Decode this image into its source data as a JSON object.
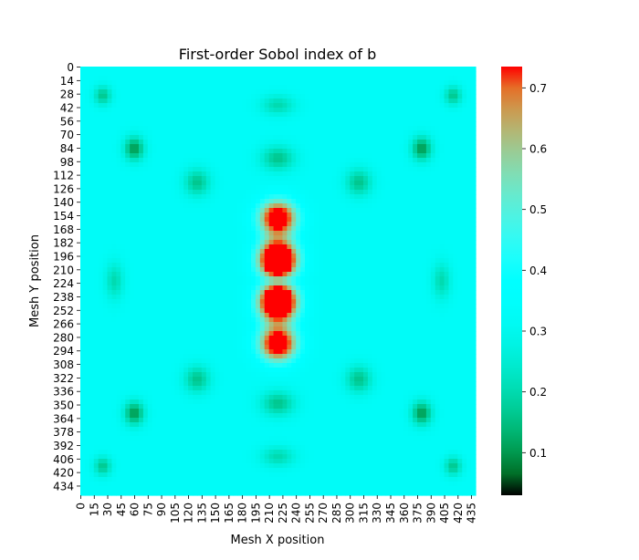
{
  "chart_data": {
    "type": "heatmap",
    "title": "First-order Sobol index of b",
    "xlabel": "Mesh X position",
    "ylabel": "Mesh Y position",
    "x_ticks": [
      0,
      15,
      30,
      45,
      60,
      75,
      90,
      105,
      120,
      135,
      150,
      165,
      180,
      195,
      210,
      225,
      240,
      255,
      270,
      285,
      300,
      315,
      330,
      345,
      360,
      375,
      390,
      405,
      420,
      435
    ],
    "y_ticks": [
      0,
      14,
      28,
      42,
      56,
      70,
      84,
      98,
      112,
      126,
      140,
      154,
      168,
      182,
      196,
      210,
      224,
      238,
      252,
      266,
      280,
      294,
      308,
      322,
      336,
      350,
      364,
      378,
      392,
      406,
      420,
      434
    ],
    "x_range": [
      0,
      440
    ],
    "y_range": [
      0,
      444
    ],
    "colormap": "rainbow",
    "colorbar": {
      "range": [
        0.03,
        0.735
      ],
      "ticks": [
        "0.1",
        "0.2",
        "0.3",
        "0.4",
        "0.5",
        "0.6",
        "0.7"
      ],
      "tick_values": [
        0.1,
        0.2,
        0.3,
        0.4,
        0.5,
        0.6,
        0.7
      ]
    },
    "background_value": 0.33,
    "symmetry": "mirror about x=220 and y=222",
    "features": [
      {
        "label": "central hot lobe upper",
        "x": 220,
        "y": 200,
        "value": 0.73
      },
      {
        "label": "central hot lobe lower",
        "x": 220,
        "y": 244,
        "value": 0.73
      },
      {
        "label": "central warm region upper",
        "x": 220,
        "y": 160,
        "value": 0.62
      },
      {
        "label": "central warm region lower",
        "x": 220,
        "y": 290,
        "value": 0.62
      },
      {
        "label": "upper-left low region",
        "x": 60,
        "y": 85,
        "value": 0.1
      },
      {
        "label": "upper-left low region 2",
        "x": 130,
        "y": 120,
        "value": 0.16
      },
      {
        "label": "top-left corner low",
        "x": 25,
        "y": 30,
        "value": 0.16
      },
      {
        "label": "left oval low",
        "x": 38,
        "y": 222,
        "value": 0.2
      },
      {
        "label": "upper center low band",
        "x": 220,
        "y": 95,
        "value": 0.16
      },
      {
        "label": "top center low band",
        "x": 220,
        "y": 40,
        "value": 0.2
      }
    ]
  }
}
